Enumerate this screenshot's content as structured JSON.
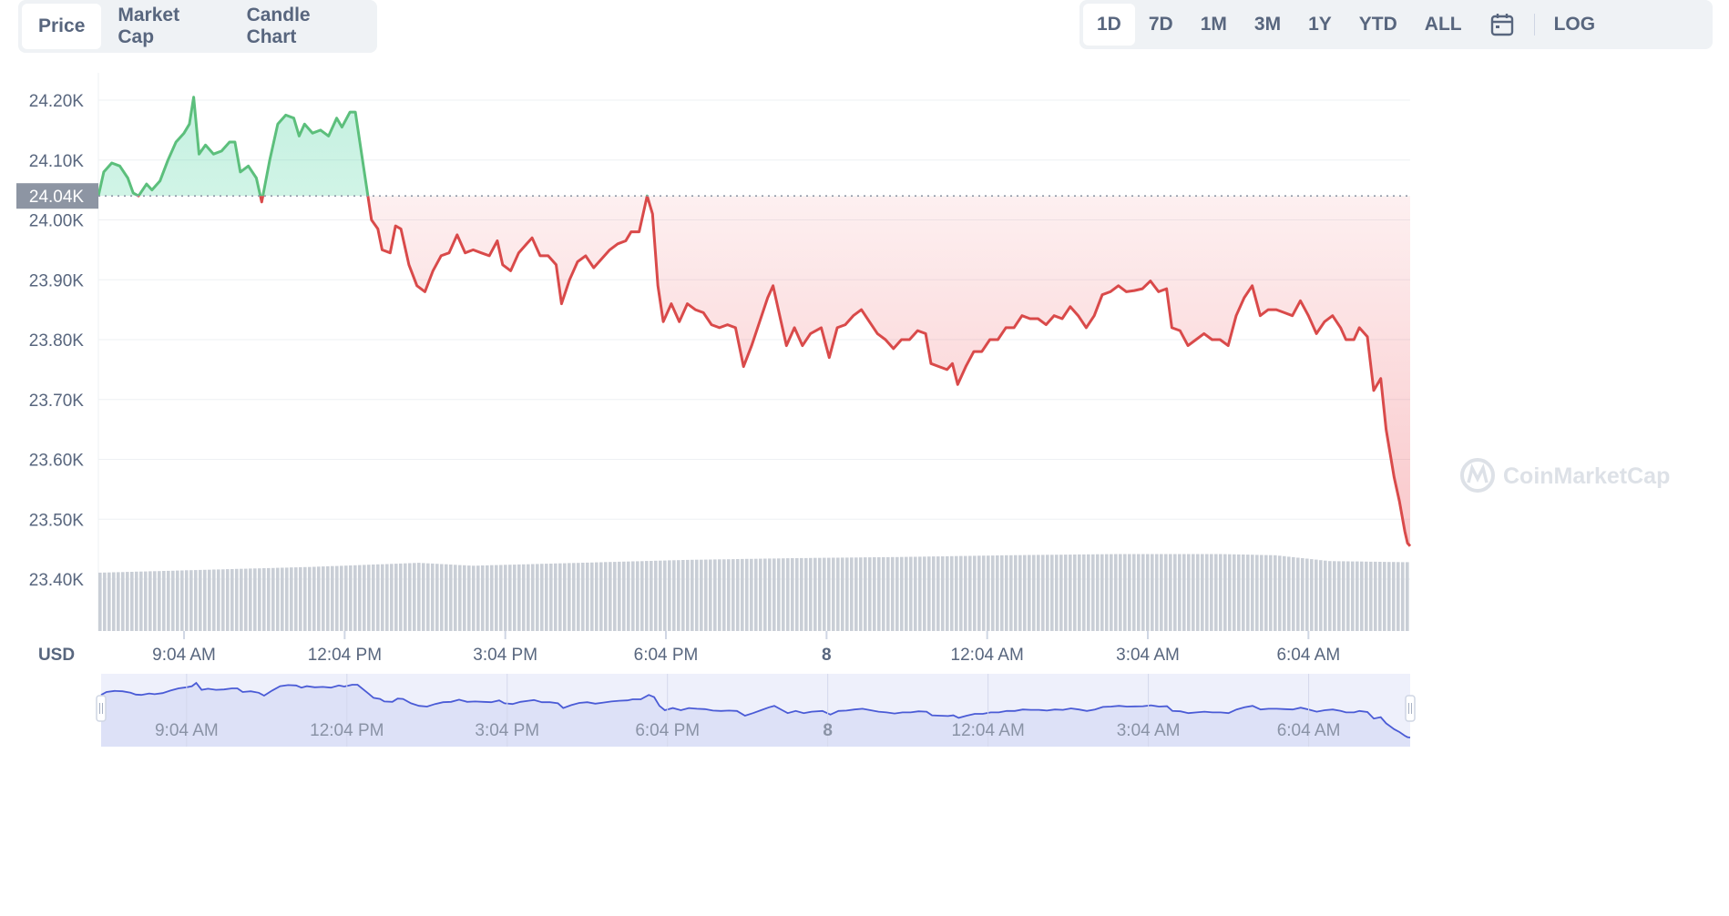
{
  "tabs_left": [
    {
      "label": "Price",
      "active": true
    },
    {
      "label": "Market Cap",
      "active": false
    },
    {
      "label": "Candle Chart",
      "active": false
    }
  ],
  "tabs_right": [
    {
      "label": "1D",
      "active": true
    },
    {
      "label": "7D",
      "active": false
    },
    {
      "label": "1M",
      "active": false
    },
    {
      "label": "3M",
      "active": false
    },
    {
      "label": "1Y",
      "active": false
    },
    {
      "label": "YTD",
      "active": false
    },
    {
      "label": "ALL",
      "active": false
    }
  ],
  "calendar_icon": "calendar-icon",
  "log_label": "LOG",
  "watermark": "CoinMarketCap",
  "colors": {
    "up": "#16c784",
    "up_line": "#5cbf7c",
    "down": "#d94a4a",
    "volume": "#c9ced6",
    "navigator": "#4a5bd6"
  },
  "chart_data": {
    "type": "line",
    "currency_label": "USD",
    "ylim": [
      23400,
      24250
    ],
    "yticks": [
      {
        "value": 24200,
        "label": "24.20K"
      },
      {
        "value": 24100,
        "label": "24.10K"
      },
      {
        "value": 24000,
        "label": "24.00K"
      },
      {
        "value": 23900,
        "label": "23.90K"
      },
      {
        "value": 23800,
        "label": "23.80K"
      },
      {
        "value": 23700,
        "label": "23.70K"
      },
      {
        "value": 23600,
        "label": "23.60K"
      },
      {
        "value": 23500,
        "label": "23.50K"
      },
      {
        "value": 23400,
        "label": "23.40K"
      }
    ],
    "reference": {
      "value": 24040,
      "label": "24.04K"
    },
    "x_range_hours": [
      0,
      24.5
    ],
    "xticks": [
      {
        "hour": 1.6,
        "label": "9:04 AM",
        "bold": false
      },
      {
        "hour": 4.6,
        "label": "12:04 PM",
        "bold": false
      },
      {
        "hour": 7.6,
        "label": "3:04 PM",
        "bold": false
      },
      {
        "hour": 10.6,
        "label": "6:04 PM",
        "bold": false
      },
      {
        "hour": 13.6,
        "label": "8",
        "bold": true
      },
      {
        "hour": 16.6,
        "label": "12:04 AM",
        "bold": false
      },
      {
        "hour": 19.6,
        "label": "3:04 AM",
        "bold": false
      },
      {
        "hour": 22.6,
        "label": "6:04 AM",
        "bold": false
      }
    ],
    "series": [
      {
        "points": [
          [
            0,
            24040
          ],
          [
            0.1,
            24080
          ],
          [
            0.25,
            24095
          ],
          [
            0.4,
            24090
          ],
          [
            0.55,
            24070
          ],
          [
            0.65,
            24045
          ],
          [
            0.75,
            24040
          ],
          [
            0.9,
            24060
          ],
          [
            1.0,
            24050
          ],
          [
            1.15,
            24065
          ],
          [
            1.3,
            24100
          ],
          [
            1.45,
            24130
          ],
          [
            1.6,
            24145
          ],
          [
            1.7,
            24160
          ],
          [
            1.78,
            24205
          ],
          [
            1.88,
            24110
          ],
          [
            2.0,
            24125
          ],
          [
            2.15,
            24110
          ],
          [
            2.3,
            24115
          ],
          [
            2.45,
            24130
          ],
          [
            2.55,
            24130
          ],
          [
            2.65,
            24080
          ],
          [
            2.8,
            24090
          ],
          [
            2.95,
            24070
          ],
          [
            3.05,
            24030
          ],
          [
            3.2,
            24100
          ],
          [
            3.35,
            24160
          ],
          [
            3.5,
            24175
          ],
          [
            3.65,
            24170
          ],
          [
            3.75,
            24140
          ],
          [
            3.85,
            24160
          ],
          [
            4.0,
            24145
          ],
          [
            4.15,
            24150
          ],
          [
            4.3,
            24140
          ],
          [
            4.45,
            24170
          ],
          [
            4.55,
            24155
          ],
          [
            4.7,
            24180
          ],
          [
            4.8,
            24180
          ],
          [
            4.9,
            24120
          ],
          [
            5.0,
            24060
          ],
          [
            5.1,
            24000
          ],
          [
            5.22,
            23985
          ],
          [
            5.3,
            23950
          ],
          [
            5.45,
            23945
          ],
          [
            5.55,
            23990
          ],
          [
            5.65,
            23985
          ],
          [
            5.8,
            23925
          ],
          [
            5.95,
            23890
          ],
          [
            6.1,
            23880
          ],
          [
            6.25,
            23915
          ],
          [
            6.4,
            23940
          ],
          [
            6.55,
            23945
          ],
          [
            6.7,
            23975
          ],
          [
            6.85,
            23945
          ],
          [
            7.0,
            23950
          ],
          [
            7.15,
            23945
          ],
          [
            7.3,
            23940
          ],
          [
            7.45,
            23965
          ],
          [
            7.55,
            23925
          ],
          [
            7.7,
            23915
          ],
          [
            7.85,
            23945
          ],
          [
            8.0,
            23960
          ],
          [
            8.1,
            23970
          ],
          [
            8.25,
            23940
          ],
          [
            8.4,
            23940
          ],
          [
            8.55,
            23925
          ],
          [
            8.65,
            23860
          ],
          [
            8.8,
            23900
          ],
          [
            8.95,
            23930
          ],
          [
            9.1,
            23940
          ],
          [
            9.25,
            23920
          ],
          [
            9.4,
            23935
          ],
          [
            9.55,
            23950
          ],
          [
            9.7,
            23960
          ],
          [
            9.85,
            23965
          ],
          [
            9.95,
            23980
          ],
          [
            10.1,
            23980
          ],
          [
            10.25,
            24040
          ],
          [
            10.35,
            24010
          ],
          [
            10.45,
            23890
          ],
          [
            10.55,
            23830
          ],
          [
            10.7,
            23860
          ],
          [
            10.85,
            23830
          ],
          [
            11.0,
            23860
          ],
          [
            11.15,
            23850
          ],
          [
            11.3,
            23845
          ],
          [
            11.45,
            23825
          ],
          [
            11.6,
            23820
          ],
          [
            11.75,
            23825
          ],
          [
            11.9,
            23820
          ],
          [
            12.05,
            23755
          ],
          [
            12.2,
            23790
          ],
          [
            12.35,
            23830
          ],
          [
            12.5,
            23870
          ],
          [
            12.6,
            23890
          ],
          [
            12.75,
            23830
          ],
          [
            12.85,
            23790
          ],
          [
            13.0,
            23820
          ],
          [
            13.15,
            23790
          ],
          [
            13.3,
            23810
          ],
          [
            13.5,
            23820
          ],
          [
            13.65,
            23770
          ],
          [
            13.8,
            23820
          ],
          [
            13.95,
            23825
          ],
          [
            14.1,
            23840
          ],
          [
            14.25,
            23850
          ],
          [
            14.4,
            23830
          ],
          [
            14.55,
            23810
          ],
          [
            14.7,
            23800
          ],
          [
            14.85,
            23785
          ],
          [
            15.0,
            23800
          ],
          [
            15.15,
            23800
          ],
          [
            15.3,
            23815
          ],
          [
            15.45,
            23810
          ],
          [
            15.55,
            23760
          ],
          [
            15.7,
            23755
          ],
          [
            15.85,
            23750
          ],
          [
            15.95,
            23760
          ],
          [
            16.05,
            23725
          ],
          [
            16.2,
            23755
          ],
          [
            16.35,
            23780
          ],
          [
            16.5,
            23780
          ],
          [
            16.65,
            23800
          ],
          [
            16.8,
            23800
          ],
          [
            16.95,
            23820
          ],
          [
            17.1,
            23820
          ],
          [
            17.25,
            23840
          ],
          [
            17.4,
            23835
          ],
          [
            17.55,
            23835
          ],
          [
            17.7,
            23825
          ],
          [
            17.85,
            23840
          ],
          [
            18.0,
            23835
          ],
          [
            18.15,
            23855
          ],
          [
            18.3,
            23840
          ],
          [
            18.45,
            23820
          ],
          [
            18.6,
            23840
          ],
          [
            18.75,
            23875
          ],
          [
            18.9,
            23880
          ],
          [
            19.05,
            23890
          ],
          [
            19.2,
            23880
          ],
          [
            19.35,
            23882
          ],
          [
            19.5,
            23885
          ],
          [
            19.65,
            23898
          ],
          [
            19.8,
            23880
          ],
          [
            19.95,
            23885
          ],
          [
            20.05,
            23820
          ],
          [
            20.2,
            23815
          ],
          [
            20.35,
            23790
          ],
          [
            20.5,
            23800
          ],
          [
            20.65,
            23810
          ],
          [
            20.8,
            23800
          ],
          [
            20.95,
            23800
          ],
          [
            21.1,
            23790
          ],
          [
            21.25,
            23840
          ],
          [
            21.4,
            23870
          ],
          [
            21.55,
            23890
          ],
          [
            21.7,
            23840
          ],
          [
            21.85,
            23850
          ],
          [
            22.0,
            23850
          ],
          [
            22.15,
            23845
          ],
          [
            22.3,
            23840
          ],
          [
            22.45,
            23865
          ],
          [
            22.6,
            23840
          ],
          [
            22.75,
            23810
          ],
          [
            22.9,
            23830
          ],
          [
            23.05,
            23840
          ],
          [
            23.2,
            23820
          ],
          [
            23.3,
            23800
          ],
          [
            23.45,
            23800
          ],
          [
            23.55,
            23820
          ],
          [
            23.7,
            23805
          ],
          [
            23.82,
            23715
          ],
          [
            23.95,
            23735
          ],
          [
            24.05,
            23650
          ],
          [
            24.2,
            23570
          ],
          [
            24.3,
            23530
          ],
          [
            24.4,
            23480
          ],
          [
            24.45,
            23460
          ],
          [
            24.5,
            23455
          ]
        ]
      }
    ],
    "volume": {
      "description_values": "relative",
      "points": [
        [
          0,
          1.0
        ],
        [
          2,
          1.05
        ],
        [
          4,
          1.1
        ],
        [
          6,
          1.17
        ],
        [
          7,
          1.12
        ],
        [
          9,
          1.17
        ],
        [
          11,
          1.22
        ],
        [
          13,
          1.25
        ],
        [
          15,
          1.27
        ],
        [
          17,
          1.3
        ],
        [
          19,
          1.32
        ],
        [
          21,
          1.32
        ],
        [
          22,
          1.3
        ],
        [
          22.5,
          1.25
        ],
        [
          23,
          1.2
        ],
        [
          24.5,
          1.18
        ]
      ]
    }
  }
}
